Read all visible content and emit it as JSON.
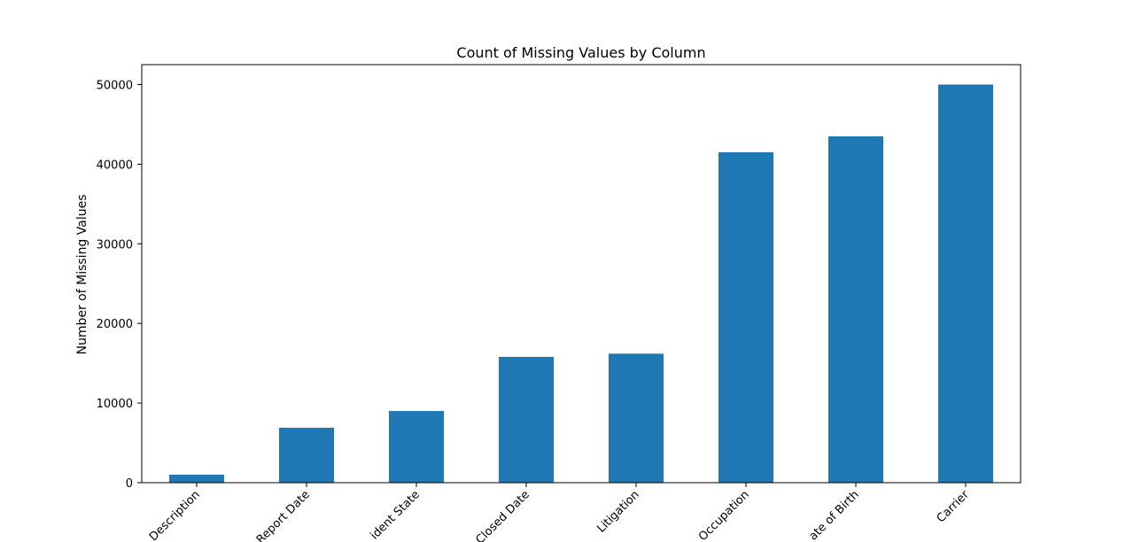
{
  "chart_data": {
    "type": "bar",
    "title": "Count of Missing Values by Column",
    "xlabel": "",
    "ylabel": "Number of Missing Values",
    "categories": [
      "Description",
      "Report Date",
      "ident State",
      "Closed Date",
      "Litigation",
      "Occupation",
      "ate of Birth",
      "Carrier"
    ],
    "values": [
      1000,
      6900,
      9000,
      15800,
      16200,
      41500,
      43500,
      50000
    ],
    "ylim": [
      0,
      52500
    ],
    "yticks": [
      0,
      10000,
      20000,
      30000,
      40000,
      50000
    ],
    "bar_color": "#1f77b4",
    "grid": false,
    "legend": "none"
  }
}
